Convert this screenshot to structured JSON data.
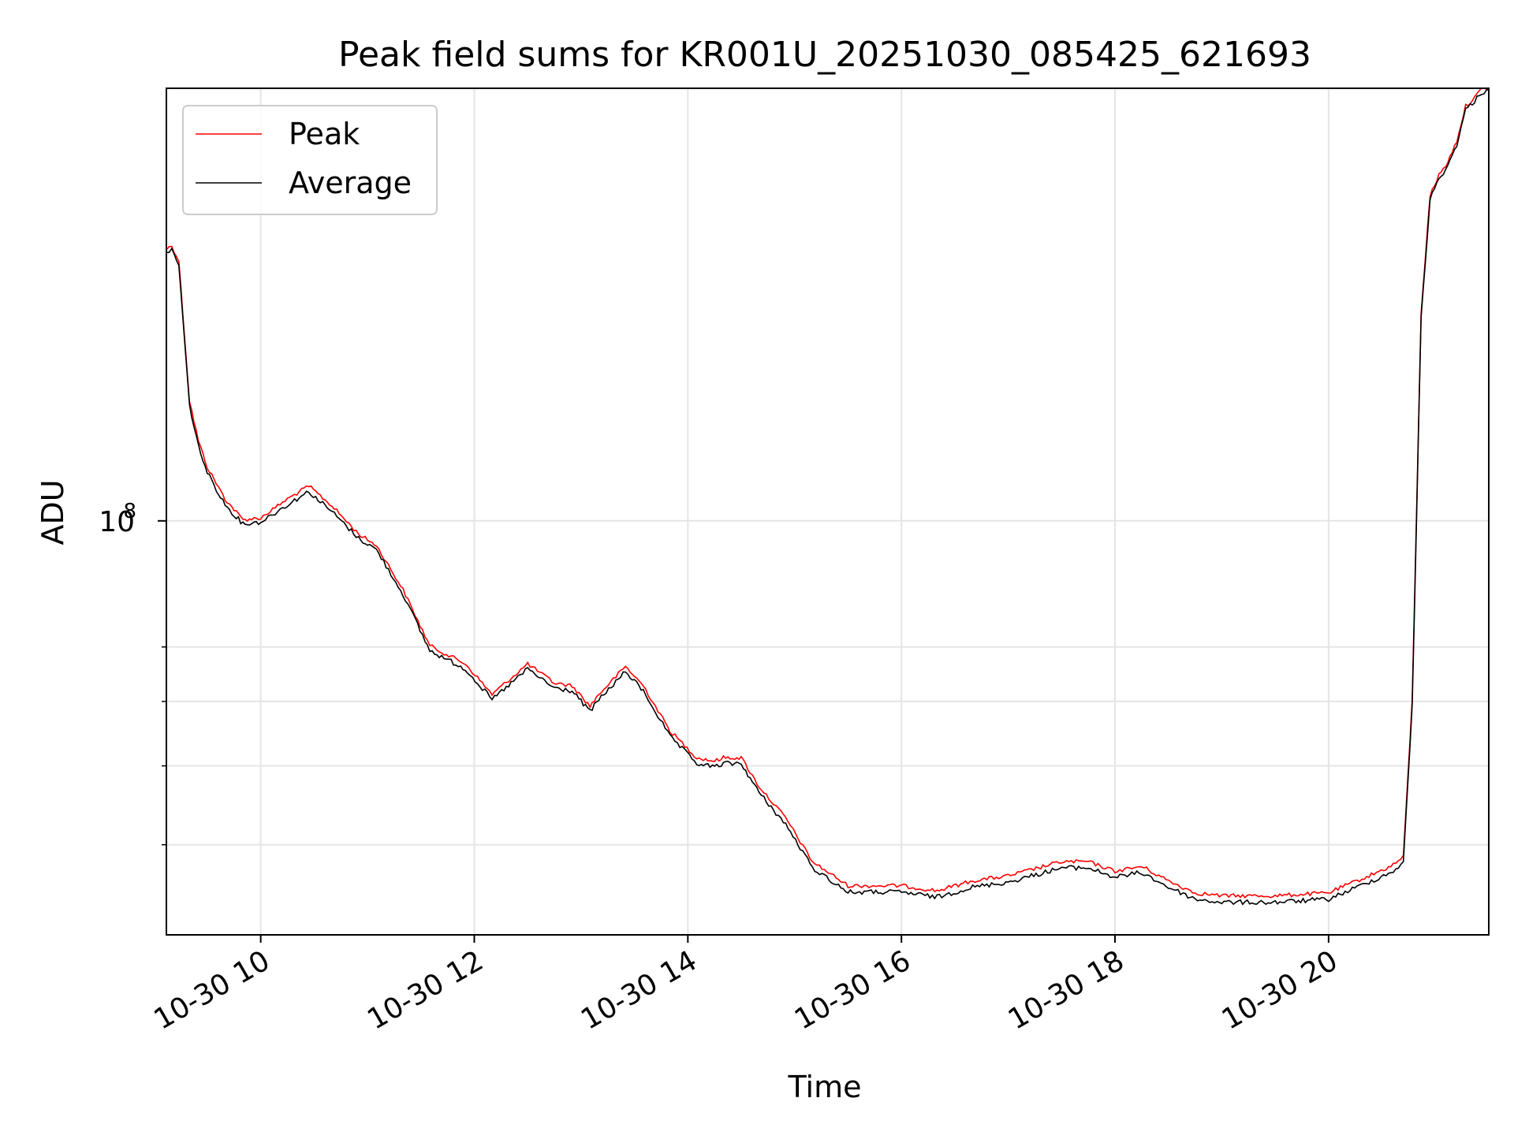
{
  "chart_data": {
    "type": "line",
    "title": "Peak field sums for KR001U_20251030_085425_621693",
    "xlabel": "Time",
    "ylabel": "ADU",
    "yscale": "log",
    "xlim": [
      "2025-10-30 09:07",
      "2025-10-30 21:30"
    ],
    "ylim": [
      31000000,
      340000000
    ],
    "grid": true,
    "legend_position": "top-left",
    "x_ticks": [
      {
        "value": "2025-10-30 10:00",
        "label": "10-30 10"
      },
      {
        "value": "2025-10-30 12:00",
        "label": "10-30 12"
      },
      {
        "value": "2025-10-30 14:00",
        "label": "10-30 14"
      },
      {
        "value": "2025-10-30 16:00",
        "label": "10-30 16"
      },
      {
        "value": "2025-10-30 18:00",
        "label": "10-30 18"
      },
      {
        "value": "2025-10-30 20:00",
        "label": "10-30 20"
      }
    ],
    "y_ticks_major": [
      {
        "value": 100000000,
        "label_base": "10",
        "label_exp": "8"
      }
    ],
    "y_ticks_minor": [
      40000000,
      50000000,
      60000000,
      70000000
    ],
    "colors": {
      "peak": "#ff0000",
      "average": "#000000",
      "grid": "#e5e5e5"
    },
    "series": [
      {
        "name": "Peak",
        "color": "#ff0000",
        "x": [
          "2025-10-30 09:07",
          "2025-10-30 09:10",
          "2025-10-30 09:14",
          "2025-10-30 09:20",
          "2025-10-30 09:25",
          "2025-10-30 09:30",
          "2025-10-30 09:40",
          "2025-10-30 09:50",
          "2025-10-30 10:00",
          "2025-10-30 10:15",
          "2025-10-30 10:27",
          "2025-10-30 10:40",
          "2025-10-30 10:55",
          "2025-10-30 11:05",
          "2025-10-30 11:20",
          "2025-10-30 11:35",
          "2025-10-30 11:55",
          "2025-10-30 12:10",
          "2025-10-30 12:30",
          "2025-10-30 12:45",
          "2025-10-30 12:55",
          "2025-10-30 13:05",
          "2025-10-30 13:10",
          "2025-10-30 13:25",
          "2025-10-30 13:35",
          "2025-10-30 13:50",
          "2025-10-30 14:05",
          "2025-10-30 14:15",
          "2025-10-30 14:20",
          "2025-10-30 14:30",
          "2025-10-30 14:40",
          "2025-10-30 14:55",
          "2025-10-30 15:10",
          "2025-10-30 15:30",
          "2025-10-30 16:00",
          "2025-10-30 16:20",
          "2025-10-30 16:40",
          "2025-10-30 17:00",
          "2025-10-30 17:30",
          "2025-10-30 17:45",
          "2025-10-30 18:00",
          "2025-10-30 18:15",
          "2025-10-30 18:30",
          "2025-10-30 18:45",
          "2025-10-30 19:00",
          "2025-10-30 19:30",
          "2025-10-30 20:00",
          "2025-10-30 20:20",
          "2025-10-30 20:35",
          "2025-10-30 20:42",
          "2025-10-30 20:47",
          "2025-10-30 20:52",
          "2025-10-30 20:57",
          "2025-10-30 21:02",
          "2025-10-30 21:07",
          "2025-10-30 21:12",
          "2025-10-30 21:17",
          "2025-10-30 21:22",
          "2025-10-30 21:26",
          "2025-10-30 21:30"
        ],
        "values": [
          215000000,
          217000000,
          208000000,
          140000000,
          125000000,
          116000000,
          106000000,
          100000000,
          100500000,
          106000000,
          110000000,
          104000000,
          96000000,
          93000000,
          82000000,
          70000000,
          66500000,
          61000000,
          66500000,
          63000000,
          62500000,
          59000000,
          61000000,
          66000000,
          62500000,
          55000000,
          51000000,
          50500000,
          51000000,
          51000000,
          47000000,
          43000000,
          38000000,
          35500000,
          35500000,
          35000000,
          36000000,
          36500000,
          38000000,
          38000000,
          37000000,
          37500000,
          36000000,
          34800000,
          34500000,
          34500000,
          34800000,
          36300000,
          37500000,
          38500000,
          60000000,
          180000000,
          250000000,
          265000000,
          275000000,
          292000000,
          322000000,
          330000000,
          338000000,
          340000000
        ]
      },
      {
        "name": "Average",
        "color": "#000000",
        "x": [
          "2025-10-30 09:07",
          "2025-10-30 09:10",
          "2025-10-30 09:14",
          "2025-10-30 09:20",
          "2025-10-30 09:25",
          "2025-10-30 09:30",
          "2025-10-30 09:40",
          "2025-10-30 09:50",
          "2025-10-30 10:00",
          "2025-10-30 10:15",
          "2025-10-30 10:27",
          "2025-10-30 10:40",
          "2025-10-30 10:55",
          "2025-10-30 11:05",
          "2025-10-30 11:20",
          "2025-10-30 11:35",
          "2025-10-30 11:55",
          "2025-10-30 12:10",
          "2025-10-30 12:30",
          "2025-10-30 12:45",
          "2025-10-30 12:55",
          "2025-10-30 13:05",
          "2025-10-30 13:10",
          "2025-10-30 13:25",
          "2025-10-30 13:35",
          "2025-10-30 13:50",
          "2025-10-30 14:05",
          "2025-10-30 14:15",
          "2025-10-30 14:20",
          "2025-10-30 14:30",
          "2025-10-30 14:40",
          "2025-10-30 14:55",
          "2025-10-30 15:10",
          "2025-10-30 15:30",
          "2025-10-30 16:00",
          "2025-10-30 16:20",
          "2025-10-30 16:40",
          "2025-10-30 17:00",
          "2025-10-30 17:30",
          "2025-10-30 17:45",
          "2025-10-30 18:00",
          "2025-10-30 18:15",
          "2025-10-30 18:30",
          "2025-10-30 18:45",
          "2025-10-30 19:00",
          "2025-10-30 19:30",
          "2025-10-30 20:00",
          "2025-10-30 20:20",
          "2025-10-30 20:35",
          "2025-10-30 20:42",
          "2025-10-30 20:47",
          "2025-10-30 20:52",
          "2025-10-30 20:57",
          "2025-10-30 21:02",
          "2025-10-30 21:07",
          "2025-10-30 21:12",
          "2025-10-30 21:17",
          "2025-10-30 21:22",
          "2025-10-30 21:26",
          "2025-10-30 21:30"
        ],
        "values": [
          214000000,
          216000000,
          207000000,
          139000000,
          124000000,
          115000000,
          105000000,
          99500000,
          100000000,
          105000000,
          109000000,
          103000000,
          95500000,
          92500000,
          81500000,
          69500000,
          66000000,
          60500000,
          66000000,
          62500000,
          62000000,
          58500000,
          60500000,
          65500000,
          62000000,
          54500000,
          50500000,
          50000000,
          50500000,
          50500000,
          46500000,
          42500000,
          37600000,
          35100000,
          35100000,
          34600000,
          35600000,
          36100000,
          37600000,
          37600000,
          36600000,
          37100000,
          35600000,
          34400000,
          34100000,
          34100000,
          34400000,
          35900000,
          37100000,
          38100000,
          59500000,
          179000000,
          249000000,
          264000000,
          274000000,
          291000000,
          321000000,
          329000000,
          337000000,
          339000000
        ]
      }
    ]
  }
}
